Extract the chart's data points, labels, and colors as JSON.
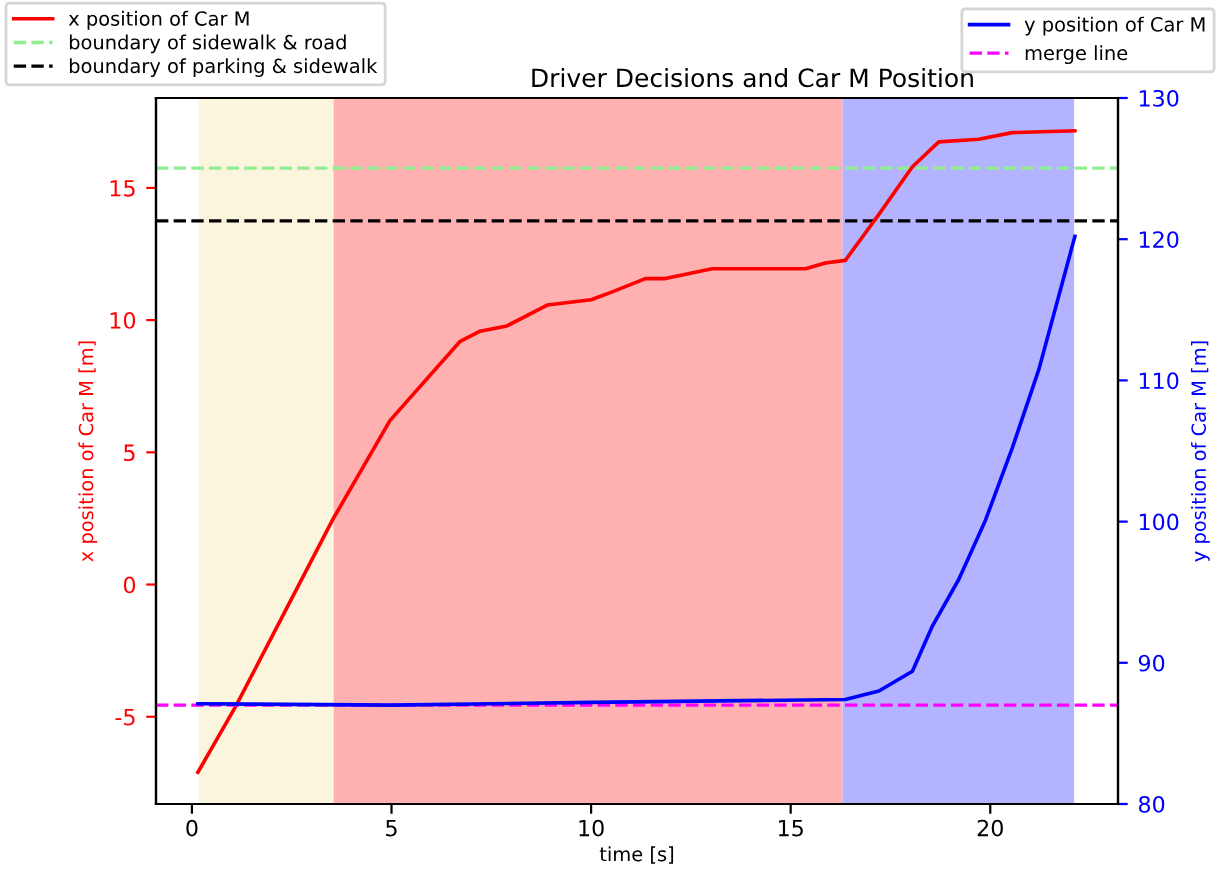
{
  "chart_data": {
    "type": "line",
    "title": "Driver Decisions and Car M Position",
    "xlabel": "time [s]",
    "ylabel": "x position of Car M [m]",
    "y2label": "y position of Car M [m]",
    "xlim": [
      -0.9,
      23.2
    ],
    "xticks": [
      0,
      5,
      10,
      15,
      20
    ],
    "ylim": [
      -8.3,
      18.4
    ],
    "yticks": [
      -5,
      0,
      5,
      10,
      15
    ],
    "y2lim": [
      80,
      130
    ],
    "y2ticks": [
      80,
      90,
      100,
      110,
      120,
      130
    ],
    "grid": false,
    "legend": "top left",
    "line_style": "solid",
    "marker": "none",
    "series": [
      {
        "name": "x position of Car M",
        "color": "#ff0000",
        "x": [
          0.15,
          1.1,
          3.54,
          4.96,
          6.72,
          7.22,
          7.89,
          8.9,
          10.0,
          10.53,
          11.36,
          11.86,
          13.03,
          15.37,
          15.87,
          16.37,
          17.21,
          18.05,
          18.71,
          19.71,
          20.55,
          22.12
        ],
        "values": [
          -7.1,
          -4.6,
          2.49,
          6.2,
          9.2,
          9.58,
          9.78,
          10.57,
          10.77,
          11.07,
          11.57,
          11.57,
          11.94,
          11.94,
          12.16,
          12.26,
          14.0,
          15.8,
          16.74,
          16.84,
          17.09,
          17.16
        ]
      },
      {
        "name": "y position of Car M",
        "color": "#0000ff",
        "axis": "y2",
        "x": [
          0.15,
          5.0,
          10.0,
          16.37,
          17.21,
          18.05,
          18.55,
          19.21,
          19.88,
          20.55,
          21.22,
          22.12
        ],
        "values": [
          87.1,
          87.0,
          87.2,
          87.4,
          88.0,
          89.4,
          92.6,
          95.9,
          100.1,
          105.2,
          110.8,
          120.2
        ]
      }
    ],
    "ref_lines": [
      {
        "axis": "y",
        "value": 15.75,
        "label": "boundary of sidewalk & road",
        "color": "#90ee90",
        "line_style": "dashed"
      },
      {
        "axis": "y",
        "value": 13.75,
        "label": "boundary of parking & sidewalk",
        "color": "#000000",
        "line_style": "dashed"
      },
      {
        "axis": "y2",
        "value": 87.0,
        "label": "merge line",
        "color": "#ff00ff",
        "line_style": "dashed"
      }
    ],
    "bands": [
      {
        "axis": "x",
        "from": 0.17,
        "to": 3.55,
        "color": "#faf5dc"
      },
      {
        "axis": "x",
        "from": 3.55,
        "to": 16.3,
        "color": "#ffb0b0"
      },
      {
        "axis": "x",
        "from": 16.3,
        "to": 22.1,
        "color": "#b3b3ff"
      }
    ]
  }
}
